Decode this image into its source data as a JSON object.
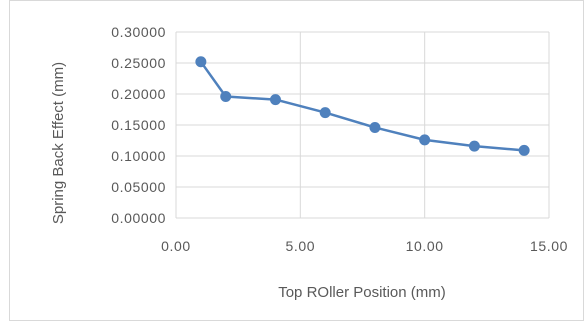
{
  "chart_data": {
    "type": "scatter",
    "mode": "lines+markers",
    "xlabel": "Top ROller Position (mm)",
    "ylabel": "Spring Back Effect (mm)",
    "xlim": [
      0,
      15
    ],
    "ylim": [
      0,
      0.3
    ],
    "x_ticks": [
      "0.00",
      "5.00",
      "10.00",
      "15.00"
    ],
    "y_ticks": [
      "0.00000",
      "0.05000",
      "0.10000",
      "0.15000",
      "0.20000",
      "0.25000",
      "0.30000"
    ],
    "grid": true,
    "legend": "none",
    "series": [
      {
        "color": "#4f81bd",
        "x": [
          1,
          2,
          4,
          6,
          8,
          10,
          12,
          14
        ],
        "y": [
          0.252,
          0.196,
          0.191,
          0.17,
          0.146,
          0.126,
          0.116,
          0.109
        ]
      }
    ]
  }
}
